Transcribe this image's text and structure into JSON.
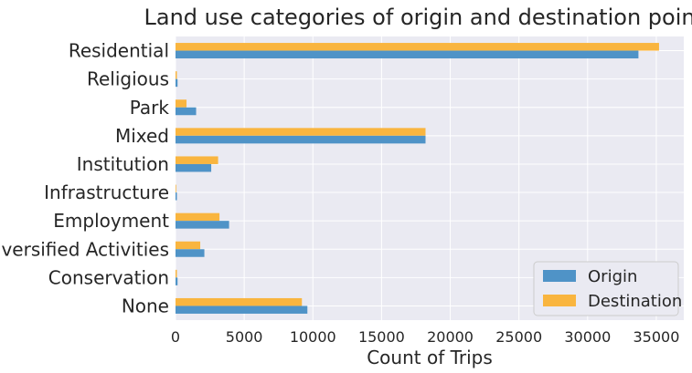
{
  "chart_data": {
    "type": "bar",
    "orientation": "horizontal",
    "title": "Land use categories of origin and destination points",
    "xlabel": "Count of Trips",
    "ylabel": "",
    "xlim": [
      0,
      37000
    ],
    "xticks": [
      0,
      5000,
      10000,
      15000,
      20000,
      25000,
      30000,
      35000
    ],
    "grid": true,
    "legend_position": "bottom-right",
    "categories": [
      "Residential",
      "Religious",
      "Park",
      "Mixed",
      "Institution",
      "Infrastructure",
      "Employment",
      "Diversified Activities",
      "Conservation",
      "None"
    ],
    "series": [
      {
        "name": "Origin",
        "color": "#4f93c7",
        "values": [
          33700,
          150,
          1500,
          18200,
          2600,
          100,
          3900,
          2100,
          150,
          9600
        ]
      },
      {
        "name": "Destination",
        "color": "#f9b53f",
        "values": [
          35200,
          100,
          800,
          18200,
          3100,
          50,
          3200,
          1800,
          100,
          9200
        ]
      }
    ]
  }
}
